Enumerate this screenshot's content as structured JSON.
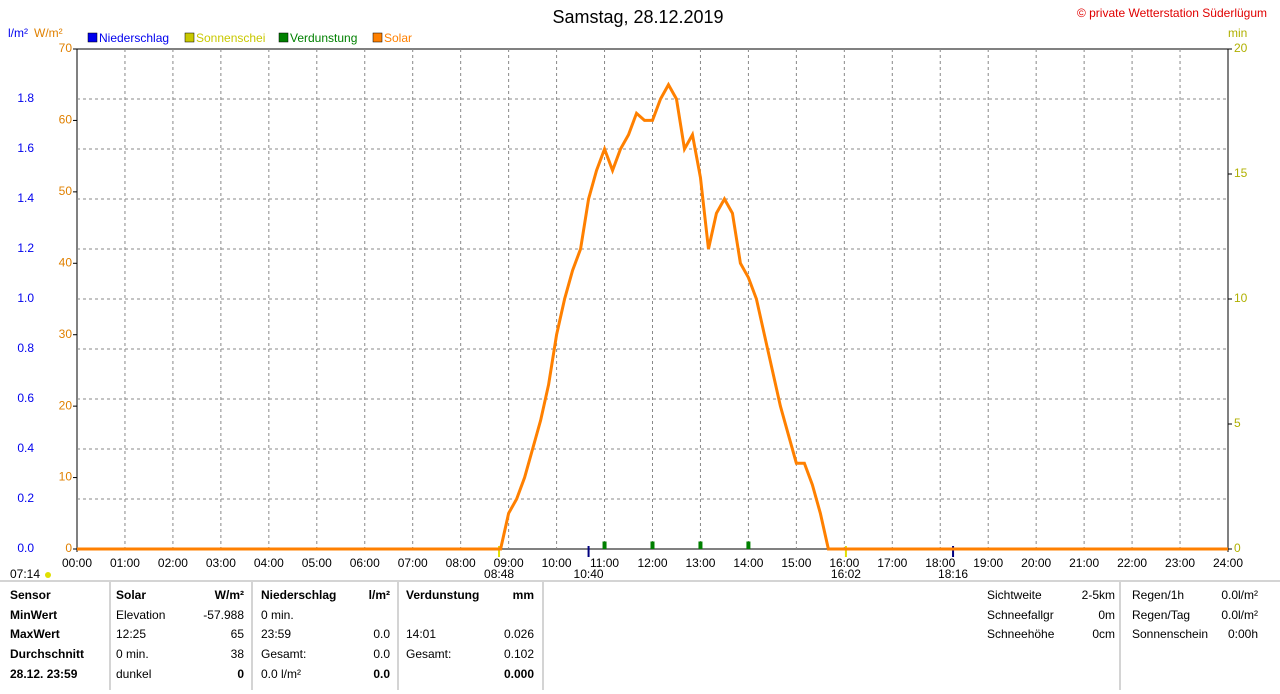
{
  "chart_data": {
    "type": "line",
    "title": "Samstag, 28.12.2019",
    "copyright": "© private Wetterstation Süderlügum",
    "y_label": "l/m²",
    "y2_label": "W/m²",
    "y3_label": "min",
    "legend": [
      {
        "name": "Niederschlag",
        "color": "#0000ee"
      },
      {
        "name": "Sonnenschei",
        "color": "#c8c800"
      },
      {
        "name": "Verdunstung",
        "color": "#008000"
      },
      {
        "name": "Solar",
        "color": "#ff8000"
      }
    ],
    "xlim": [
      0,
      24
    ],
    "xticks": [
      {
        "value": 0,
        "label": "00:00"
      },
      {
        "value": 1,
        "label": "01:00"
      },
      {
        "value": 2,
        "label": "02:00"
      },
      {
        "value": 3,
        "label": "03:00"
      },
      {
        "value": 4,
        "label": "04:00"
      },
      {
        "value": 5,
        "label": "05:00"
      },
      {
        "value": 6,
        "label": "06:00"
      },
      {
        "value": 7,
        "label": "07:00"
      },
      {
        "value": 8,
        "label": "08:00"
      },
      {
        "value": 9,
        "label": "09:00"
      },
      {
        "value": 10,
        "label": "10:00"
      },
      {
        "value": 11,
        "label": "11:00"
      },
      {
        "value": 12,
        "label": "12:00"
      },
      {
        "value": 13,
        "label": "13:00"
      },
      {
        "value": 14,
        "label": "14:00"
      },
      {
        "value": 15,
        "label": "15:00"
      },
      {
        "value": 16,
        "label": "16:00"
      },
      {
        "value": 17,
        "label": "17:00"
      },
      {
        "value": 18,
        "label": "18:00"
      },
      {
        "value": 19,
        "label": "19:00"
      },
      {
        "value": 20,
        "label": "20:00"
      },
      {
        "value": 21,
        "label": "21:00"
      },
      {
        "value": 22,
        "label": "22:00"
      },
      {
        "value": 23,
        "label": "23:00"
      },
      {
        "value": 24,
        "label": "24:00"
      }
    ],
    "ylim": [
      0,
      2
    ],
    "yticks": [
      {
        "value": 0,
        "label": "0.0"
      },
      0.2,
      0.4,
      0.6,
      0.8,
      {
        "value": 1,
        "label": "1.0"
      },
      1.2,
      1.4,
      1.6,
      1.8
    ],
    "y_color": "#0000ee",
    "y2lim": [
      0,
      70
    ],
    "y2ticks": [
      0,
      10,
      20,
      30,
      40,
      50,
      60,
      70
    ],
    "y2_color": "#e08000",
    "y3lim": [
      0,
      20
    ],
    "y3ticks": [
      0,
      5,
      10,
      15,
      20
    ],
    "y3_color": "#b0b000",
    "grid": true,
    "series": [
      {
        "name": "Solar",
        "color": "#ff8000",
        "axis": "y2",
        "x": [
          0,
          8.833,
          9,
          9.167,
          9.333,
          9.5,
          9.667,
          9.833,
          10,
          10.167,
          10.333,
          10.5,
          10.667,
          10.833,
          11,
          11.167,
          11.333,
          11.5,
          11.667,
          11.833,
          12,
          12.167,
          12.333,
          12.5,
          12.667,
          12.833,
          13,
          13.167,
          13.333,
          13.5,
          13.667,
          13.833,
          14,
          14.167,
          14.333,
          14.5,
          14.667,
          14.833,
          15,
          15.167,
          15.333,
          15.5,
          15.667,
          24
        ],
        "values": [
          0,
          0,
          5,
          7,
          10,
          14,
          18,
          23,
          30,
          35,
          39,
          42,
          49,
          53,
          56,
          53,
          56,
          58,
          61,
          60,
          60,
          63,
          65,
          63,
          56,
          58,
          52,
          42,
          47,
          49,
          47,
          40,
          38,
          35,
          30,
          25,
          20,
          16,
          12,
          12,
          9,
          5,
          0,
          0
        ]
      },
      {
        "name": "Verdunstung",
        "color": "#008000",
        "axis": "y",
        "x": [
          11,
          12,
          13,
          14
        ],
        "values": [
          0.03,
          0.03,
          0.03,
          0.03
        ]
      }
    ],
    "left_note": "07:14",
    "annotations": [
      {
        "value": 8.8,
        "label": "08:48",
        "color": "#e0e000"
      },
      {
        "value": 10.667,
        "label": "10:40",
        "color": "#000080"
      },
      {
        "value": 16.033,
        "label": "16:02",
        "color": "#e0e000"
      },
      {
        "value": 18.267,
        "label": "18:16",
        "color": "#000080"
      }
    ]
  },
  "stats": {
    "sensor": [
      "Sensor",
      "MinWert",
      "MaxWert",
      "Durchschnitt",
      "28.12. 23:59"
    ],
    "panels": [
      {
        "title": "Solar",
        "unit": "W/m²",
        "rows": [
          {
            "l": "Elevation",
            "r": "-57.988"
          },
          {
            "l": "12:25",
            "r": "65"
          },
          {
            "l": "0 min.",
            "r": "38"
          },
          {
            "l": "dunkel",
            "r": "0"
          }
        ]
      },
      {
        "title": "Niederschlag",
        "unit": "l/m²",
        "rows": [
          {
            "l": "0 min."
          },
          {
            "l": "23:59",
            "r": "0.0"
          },
          {
            "l": "Gesamt:",
            "r": "0.0"
          },
          {
            "l": "0.0 l/m²",
            "r": "0.0"
          }
        ]
      },
      {
        "title": "Verdunstung",
        "unit": "mm",
        "rows": [
          {
            "l": "14:01",
            "r": "0.026"
          },
          {
            "l": "Gesamt:",
            "r": "0.102"
          },
          {
            "r": "0.000"
          }
        ]
      },
      {
        "rows": [
          {
            "l": "Sichtweite",
            "r": "2-5km"
          },
          {
            "l": "Schneefallgr",
            "r": "0m"
          },
          {
            "l": "Schneehöhe",
            "r": "0cm"
          }
        ]
      },
      {
        "rows": [
          {
            "l": "Regen/1h",
            "r": "0.0l/m²"
          },
          {
            "l": "Regen/Tag",
            "r": "0.0l/m²"
          },
          {
            "l": "Sonnenschein",
            "r": "0:00h"
          }
        ]
      }
    ]
  }
}
